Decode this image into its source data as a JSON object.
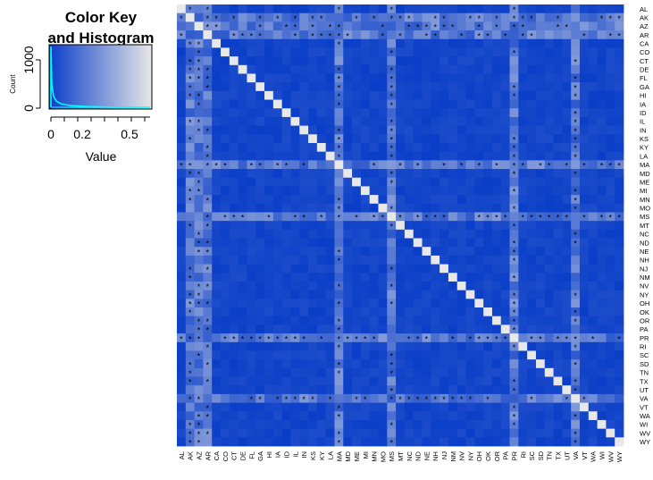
{
  "color_key": {
    "title_line1": "Color Key",
    "title_line2": "and Histogram",
    "ylabel": "Count",
    "xlabel": "Value",
    "yticks": [
      "0",
      "1000"
    ],
    "xticks": [
      "0",
      "0.2",
      "0.5"
    ],
    "low_color": "#0a3ec8",
    "high_color": "#e8e8e8",
    "density_color": "#00ffff"
  },
  "chart_data": {
    "type": "heatmap",
    "title": "",
    "xlabel": "",
    "ylabel": "",
    "value_range": [
      0,
      0.6
    ],
    "labels": [
      "AL",
      "AK",
      "AZ",
      "AR",
      "CA",
      "CO",
      "CT",
      "DE",
      "FL",
      "GA",
      "HI",
      "IA",
      "ID",
      "IL",
      "IN",
      "KS",
      "KY",
      "LA",
      "MA",
      "MD",
      "ME",
      "MI",
      "MN",
      "MO",
      "MS",
      "MT",
      "NC",
      "ND",
      "NE",
      "NH",
      "NJ",
      "NM",
      "NV",
      "NY",
      "OH",
      "OK",
      "OR",
      "PA",
      "PR",
      "RI",
      "SC",
      "SD",
      "TN",
      "TX",
      "UT",
      "VA",
      "VT",
      "WA",
      "WI",
      "WV",
      "WY"
    ],
    "highlighted_rows": [
      "AK",
      "AZ",
      "AR",
      "MA",
      "MS",
      "PR",
      "VA"
    ],
    "highlight_value": 0.25,
    "diagonal_value": 0.6,
    "significance_marker": "*"
  }
}
